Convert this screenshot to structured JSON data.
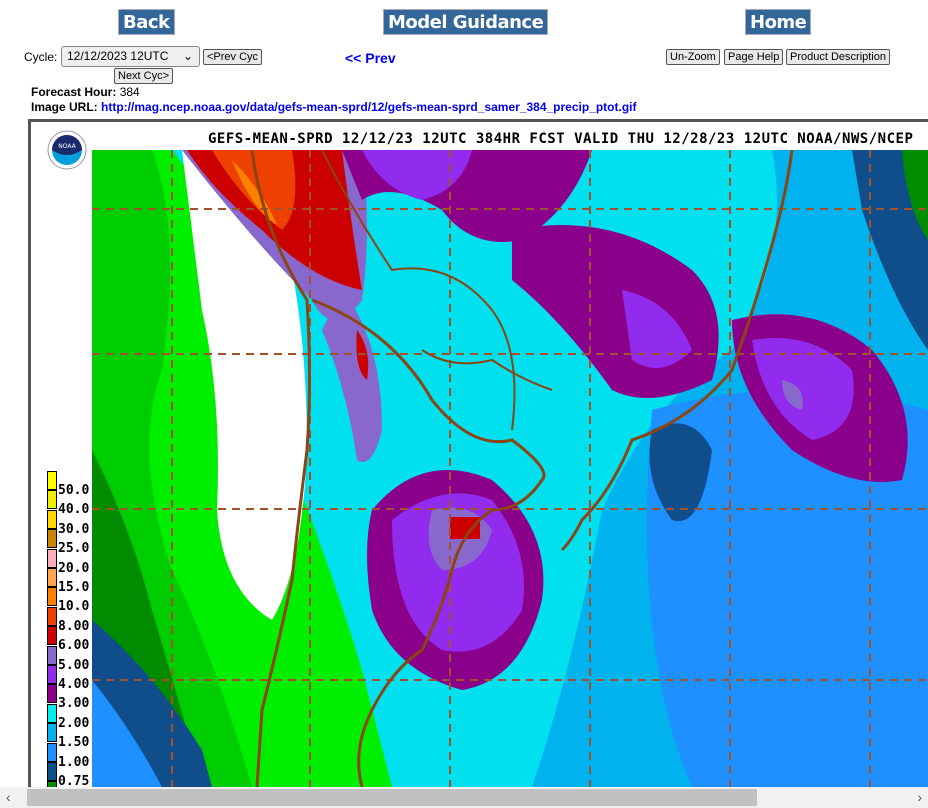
{
  "nav": {
    "back": "Back",
    "model_guidance": "Model Guidance",
    "home": "Home"
  },
  "controls": {
    "cycle_label": "Cycle:",
    "cycle_value": "12/12/2023 12UTC",
    "prev_cyc": "<Prev Cyc",
    "next_cyc": "Next Cyc>",
    "prev": "<< Prev",
    "unzoom": "Un-Zoom",
    "page_help": "Page Help",
    "product_description": "Product Description"
  },
  "info": {
    "forecast_hour_label": "Forecast Hour:",
    "forecast_hour": "384",
    "image_url_label": "Image URL:",
    "image_url": "http://mag.ncep.noaa.gov/data/gefs-mean-sprd/12/gefs-mean-sprd_samer_384_precip_ptot.gif"
  },
  "map": {
    "title": "GEFS-MEAN-SPRD 12/12/23 12UTC 384HR FCST VALID THU 12/28/23 12UTC NOAA/NWS/NCEP",
    "logo": "NOAA"
  },
  "legend": [
    {
      "label": "50.0",
      "color": "#ffff00"
    },
    {
      "label": "40.0",
      "color": "#eeee00"
    },
    {
      "label": "30.0",
      "color": "#ffd700"
    },
    {
      "label": "25.0",
      "color": "#cd8500"
    },
    {
      "label": "20.0",
      "color": "#ffaeb9"
    },
    {
      "label": "15.0",
      "color": "#ffa54f"
    },
    {
      "label": "10.0",
      "color": "#ff7f00"
    },
    {
      "label": "8.00",
      "color": "#ee4000"
    },
    {
      "label": "6.00",
      "color": "#cd0000"
    },
    {
      "label": "5.00",
      "color": "#8968cd"
    },
    {
      "label": "4.00",
      "color": "#912cee"
    },
    {
      "label": "3.00",
      "color": "#8b008b"
    },
    {
      "label": "2.00",
      "color": "#00eeee"
    },
    {
      "label": "1.50",
      "color": "#00b2ee"
    },
    {
      "label": "1.00",
      "color": "#1e90ff"
    },
    {
      "label": "0.75",
      "color": "#104e8b"
    },
    {
      "label": "",
      "color": "#008b00"
    }
  ]
}
